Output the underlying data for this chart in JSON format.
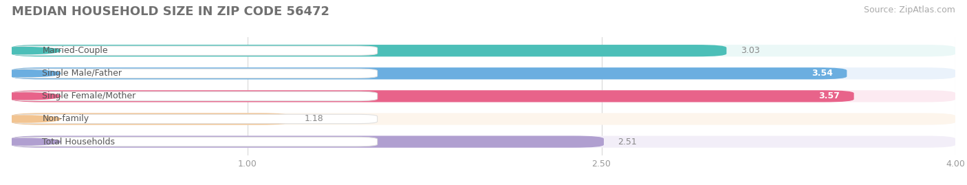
{
  "title": "MEDIAN HOUSEHOLD SIZE IN ZIP CODE 56472",
  "source": "Source: ZipAtlas.com",
  "categories": [
    "Married-Couple",
    "Single Male/Father",
    "Single Female/Mother",
    "Non-family",
    "Total Households"
  ],
  "values": [
    3.03,
    3.54,
    3.57,
    1.18,
    2.51
  ],
  "bar_colors": [
    "#4CBFB8",
    "#6BAEE0",
    "#E8638A",
    "#F2C491",
    "#B09FD0"
  ],
  "bg_colors": [
    "#EBF8F7",
    "#EAF2FB",
    "#FCEAF1",
    "#FDF5EC",
    "#F2EEF8"
  ],
  "label_colors": [
    "#3AADA6",
    "#5898D0",
    "#D85880",
    "#D4A870",
    "#9A8EC0"
  ],
  "xlim": [
    0,
    4.0
  ],
  "xticks": [
    1.0,
    2.5,
    4.0
  ],
  "title_fontsize": 13,
  "source_fontsize": 9,
  "label_fontsize": 9,
  "value_fontsize": 9,
  "background_color": "#FFFFFF",
  "value_color_inside": "#FFFFFF",
  "value_color_outside": "#888888"
}
